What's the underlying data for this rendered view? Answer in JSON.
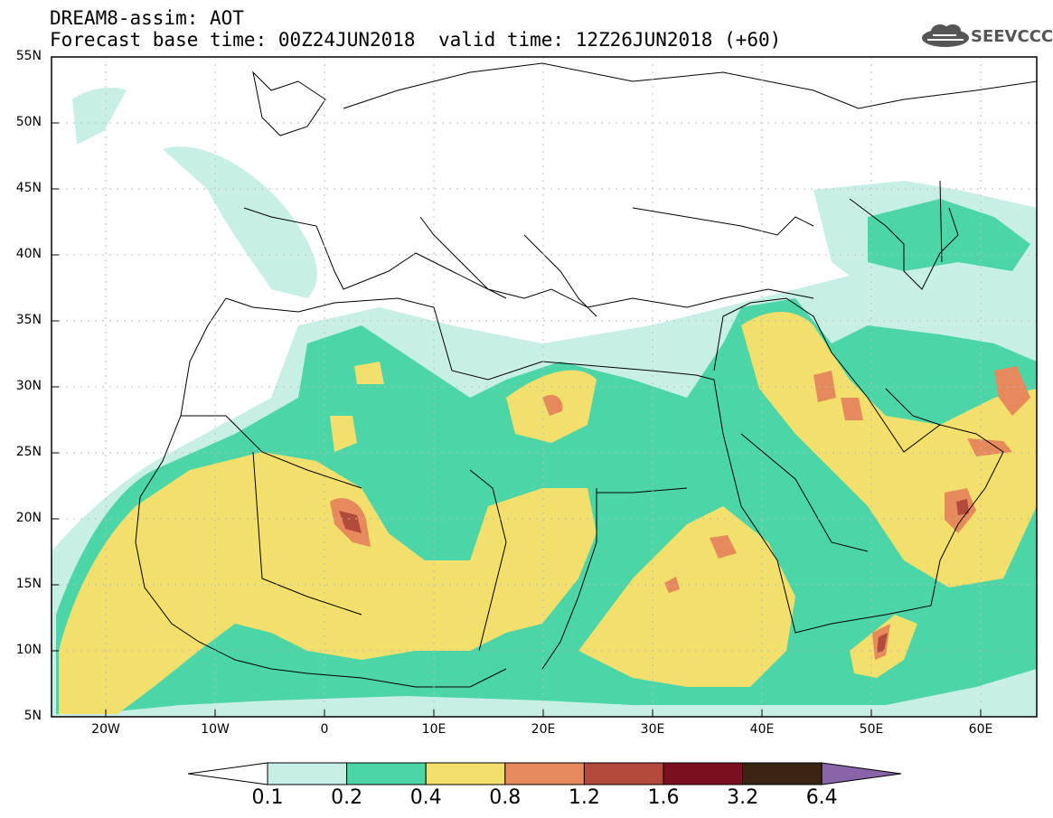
{
  "header": {
    "title_line1": "DREAM8-assim: AOT",
    "base_time": "Forecast base time: 00Z24JUN2018",
    "valid_time": "valid time: 12Z26JUN2018 (+60)",
    "logo_text": "SEEVCCC"
  },
  "axes": {
    "lat_labels": [
      "55N",
      "50N",
      "45N",
      "40N",
      "35N",
      "30N",
      "25N",
      "20N",
      "15N",
      "10N",
      "5N"
    ],
    "lon_labels": [
      "20W",
      "10W",
      "0",
      "10E",
      "20E",
      "30E",
      "40E",
      "50E",
      "60E"
    ]
  },
  "colorbar": {
    "labels": [
      "0.1",
      "0.2",
      "0.4",
      "0.8",
      "1.2",
      "1.6",
      "3.2",
      "6.4"
    ],
    "colors": [
      "#ffffff",
      "#c8efe6",
      "#4cd6a8",
      "#f2df6c",
      "#e68a5c",
      "#b24b3c",
      "#7a0f22",
      "#3a2412",
      "#8a64a8"
    ]
  },
  "colors": {
    "aot_0_1": "#c8efe6",
    "aot_0_2": "#4cd6a8",
    "aot_0_4": "#f2df6c",
    "aot_0_8": "#e68a5c",
    "aot_1_2": "#b24b3c"
  }
}
